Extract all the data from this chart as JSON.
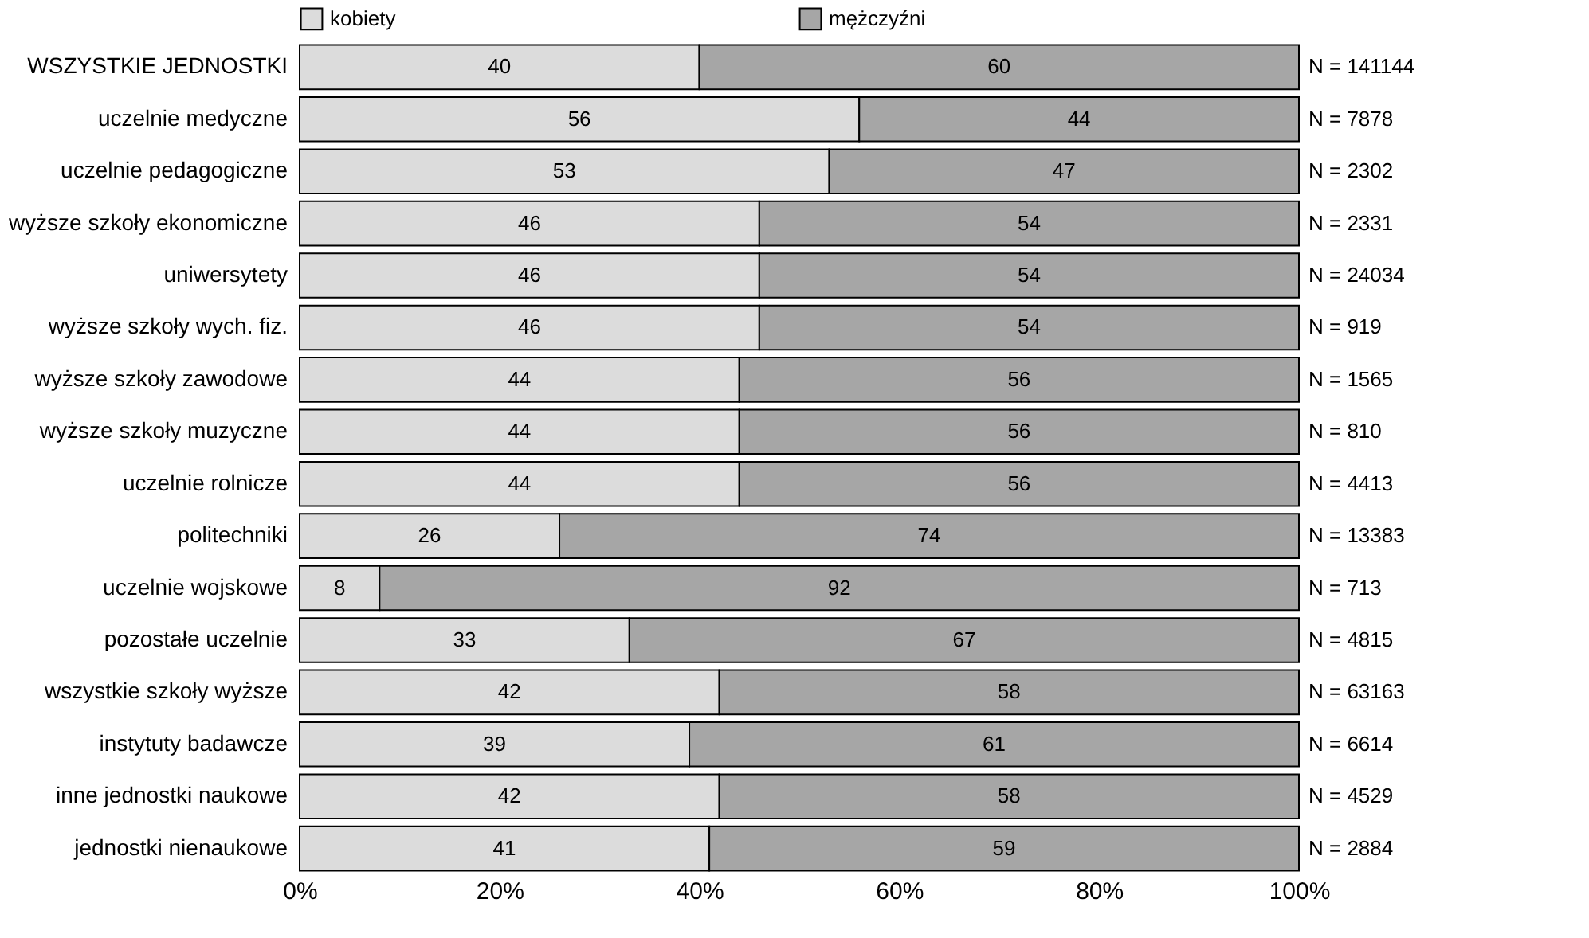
{
  "chart_data": {
    "type": "bar",
    "orientation": "horizontal",
    "stacked": true,
    "data_labels": true,
    "legend": "top",
    "grid": false,
    "categories": [
      "WSZYSTKIE JEDNOSTKI",
      "uczelnie medyczne",
      "uczelnie pedagogiczne",
      "wyższe szkoły ekonomiczne",
      "uniwersytety",
      "wyższe szkoły wych. fiz.",
      "wyższe szkoły zawodowe",
      "wyższe szkoły muzyczne",
      "uczelnie rolnicze",
      "politechniki",
      "uczelnie wojskowe",
      "pozostałe uczelnie",
      "wszystkie szkoły wyższe",
      "instytuty badawcze",
      "inne jednostki naukowe",
      "jednostki nienaukowe"
    ],
    "series": [
      {
        "name": "kobiety",
        "color": "#dcdcdc",
        "values": [
          40,
          56,
          53,
          46,
          46,
          46,
          44,
          44,
          44,
          26,
          8,
          33,
          42,
          39,
          42,
          41
        ]
      },
      {
        "name": "mężczyźni",
        "color": "#a6a6a6",
        "values": [
          60,
          44,
          47,
          54,
          54,
          54,
          56,
          56,
          56,
          74,
          92,
          67,
          58,
          61,
          58,
          59
        ]
      }
    ],
    "xlim": [
      0,
      100
    ],
    "xticks": [
      {
        "value": 0,
        "label": "0%"
      },
      {
        "value": 20,
        "label": "20%"
      },
      {
        "value": 40,
        "label": "40%"
      },
      {
        "value": 60,
        "label": "60%"
      },
      {
        "value": 80,
        "label": "80%"
      },
      {
        "value": 100,
        "label": "100%"
      }
    ],
    "annotations": [
      "N = 141144",
      "N = 7878",
      "N = 2302",
      "N = 2331",
      "N = 24034",
      "N = 919",
      "N = 1565",
      "N = 810",
      "N = 4413",
      "N = 13383",
      "N = 713",
      "N = 4815",
      "N = 63163",
      "N = 6614",
      "N = 4529",
      "N = 2884"
    ]
  }
}
